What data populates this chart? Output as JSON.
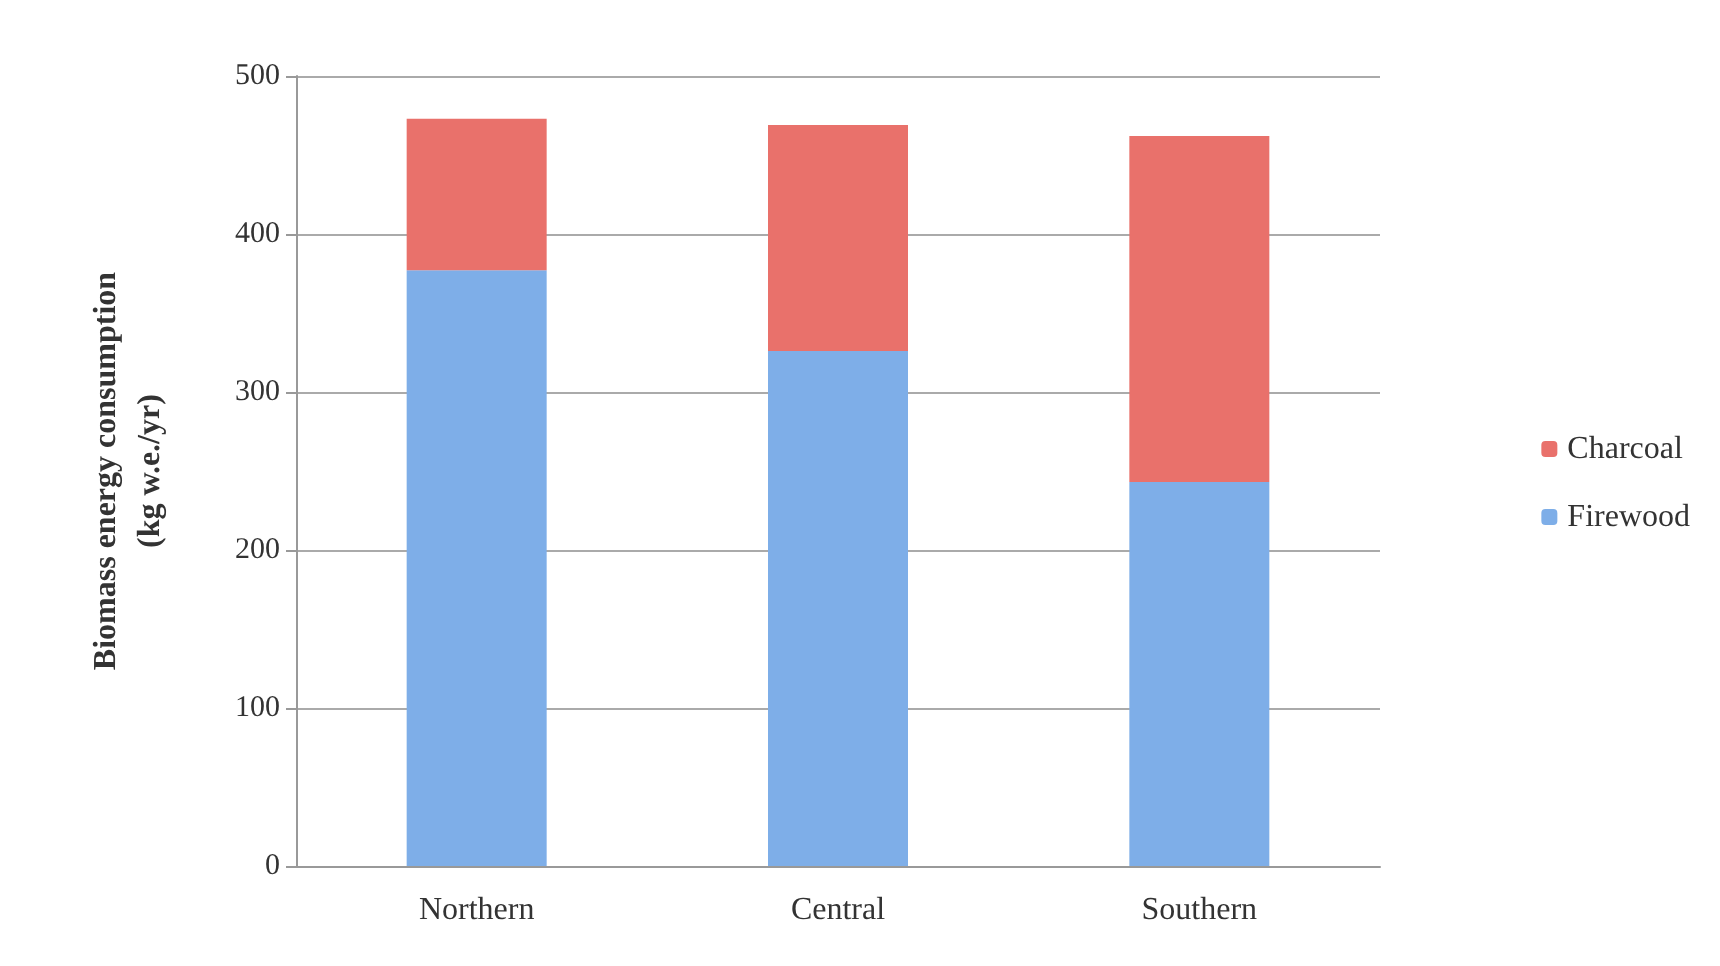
{
  "chart_data": {
    "type": "bar",
    "ylabel": "Biomass energy consumption\n(kg w.e./yr)",
    "categories": [
      "Northern",
      "Central",
      "Southern"
    ],
    "series": [
      {
        "name": "Firewood",
        "color": "#7eaee8",
        "values": [
          377,
          326,
          243
        ]
      },
      {
        "name": "Charcoal",
        "color": "#e9716b",
        "values": [
          96,
          143,
          219
        ]
      }
    ],
    "stacked": true,
    "ylim": [
      0,
      500
    ],
    "yticks": [
      0,
      100,
      200,
      300,
      400,
      500
    ],
    "grid": "y",
    "legend": "right"
  }
}
